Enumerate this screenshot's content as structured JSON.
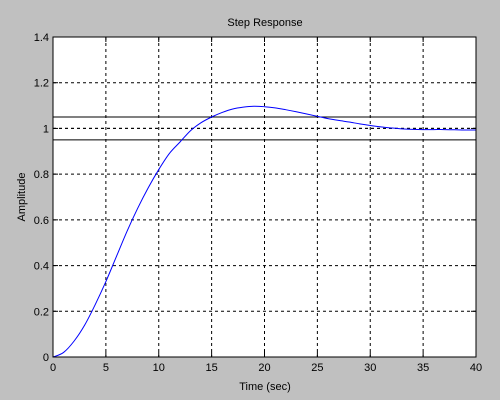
{
  "chart_data": {
    "type": "line",
    "title": "Step Response",
    "xlabel": "Time (sec)",
    "ylabel": "Amplitude",
    "xlim": [
      0,
      40
    ],
    "ylim": [
      0,
      1.4
    ],
    "xticks": [
      0,
      5,
      10,
      15,
      20,
      25,
      30,
      35,
      40
    ],
    "yticks": [
      0,
      0.2,
      0.4,
      0.6,
      0.8,
      1,
      1.2,
      1.4
    ],
    "xtick_labels": [
      "0",
      "5",
      "10",
      "15",
      "20",
      "25",
      "30",
      "35",
      "40"
    ],
    "ytick_labels": [
      "0",
      "0.2",
      "0.4",
      "0.6",
      "0.8",
      "1",
      "1.2",
      "1.4"
    ],
    "grid": true,
    "series": [
      {
        "color": "#0000ff",
        "x": [
          0,
          1,
          2,
          3,
          4,
          5,
          6,
          7,
          8,
          9,
          10,
          11,
          12,
          13,
          14,
          15,
          16,
          17,
          18,
          19,
          20,
          21,
          22,
          23,
          24,
          25,
          26,
          27,
          28,
          29,
          30,
          31,
          32,
          33,
          34,
          35,
          36,
          37,
          38,
          39,
          40
        ],
        "y": [
          0,
          0.02,
          0.07,
          0.14,
          0.23,
          0.33,
          0.44,
          0.55,
          0.65,
          0.74,
          0.82,
          0.89,
          0.94,
          0.99,
          1.025,
          1.05,
          1.07,
          1.085,
          1.093,
          1.097,
          1.095,
          1.09,
          1.082,
          1.073,
          1.063,
          1.053,
          1.043,
          1.035,
          1.028,
          1.02,
          1.013,
          1.007,
          1.002,
          0.998,
          0.996,
          0.995,
          0.995,
          0.995,
          0.994,
          0.993,
          0.993
        ]
      }
    ],
    "reference_lines": [
      {
        "y": 1.05,
        "style": "solid",
        "color": "#000000"
      },
      {
        "y": 1.0,
        "style": "dashed",
        "color": "#000000"
      },
      {
        "y": 0.95,
        "style": "solid",
        "color": "#000000"
      }
    ]
  }
}
